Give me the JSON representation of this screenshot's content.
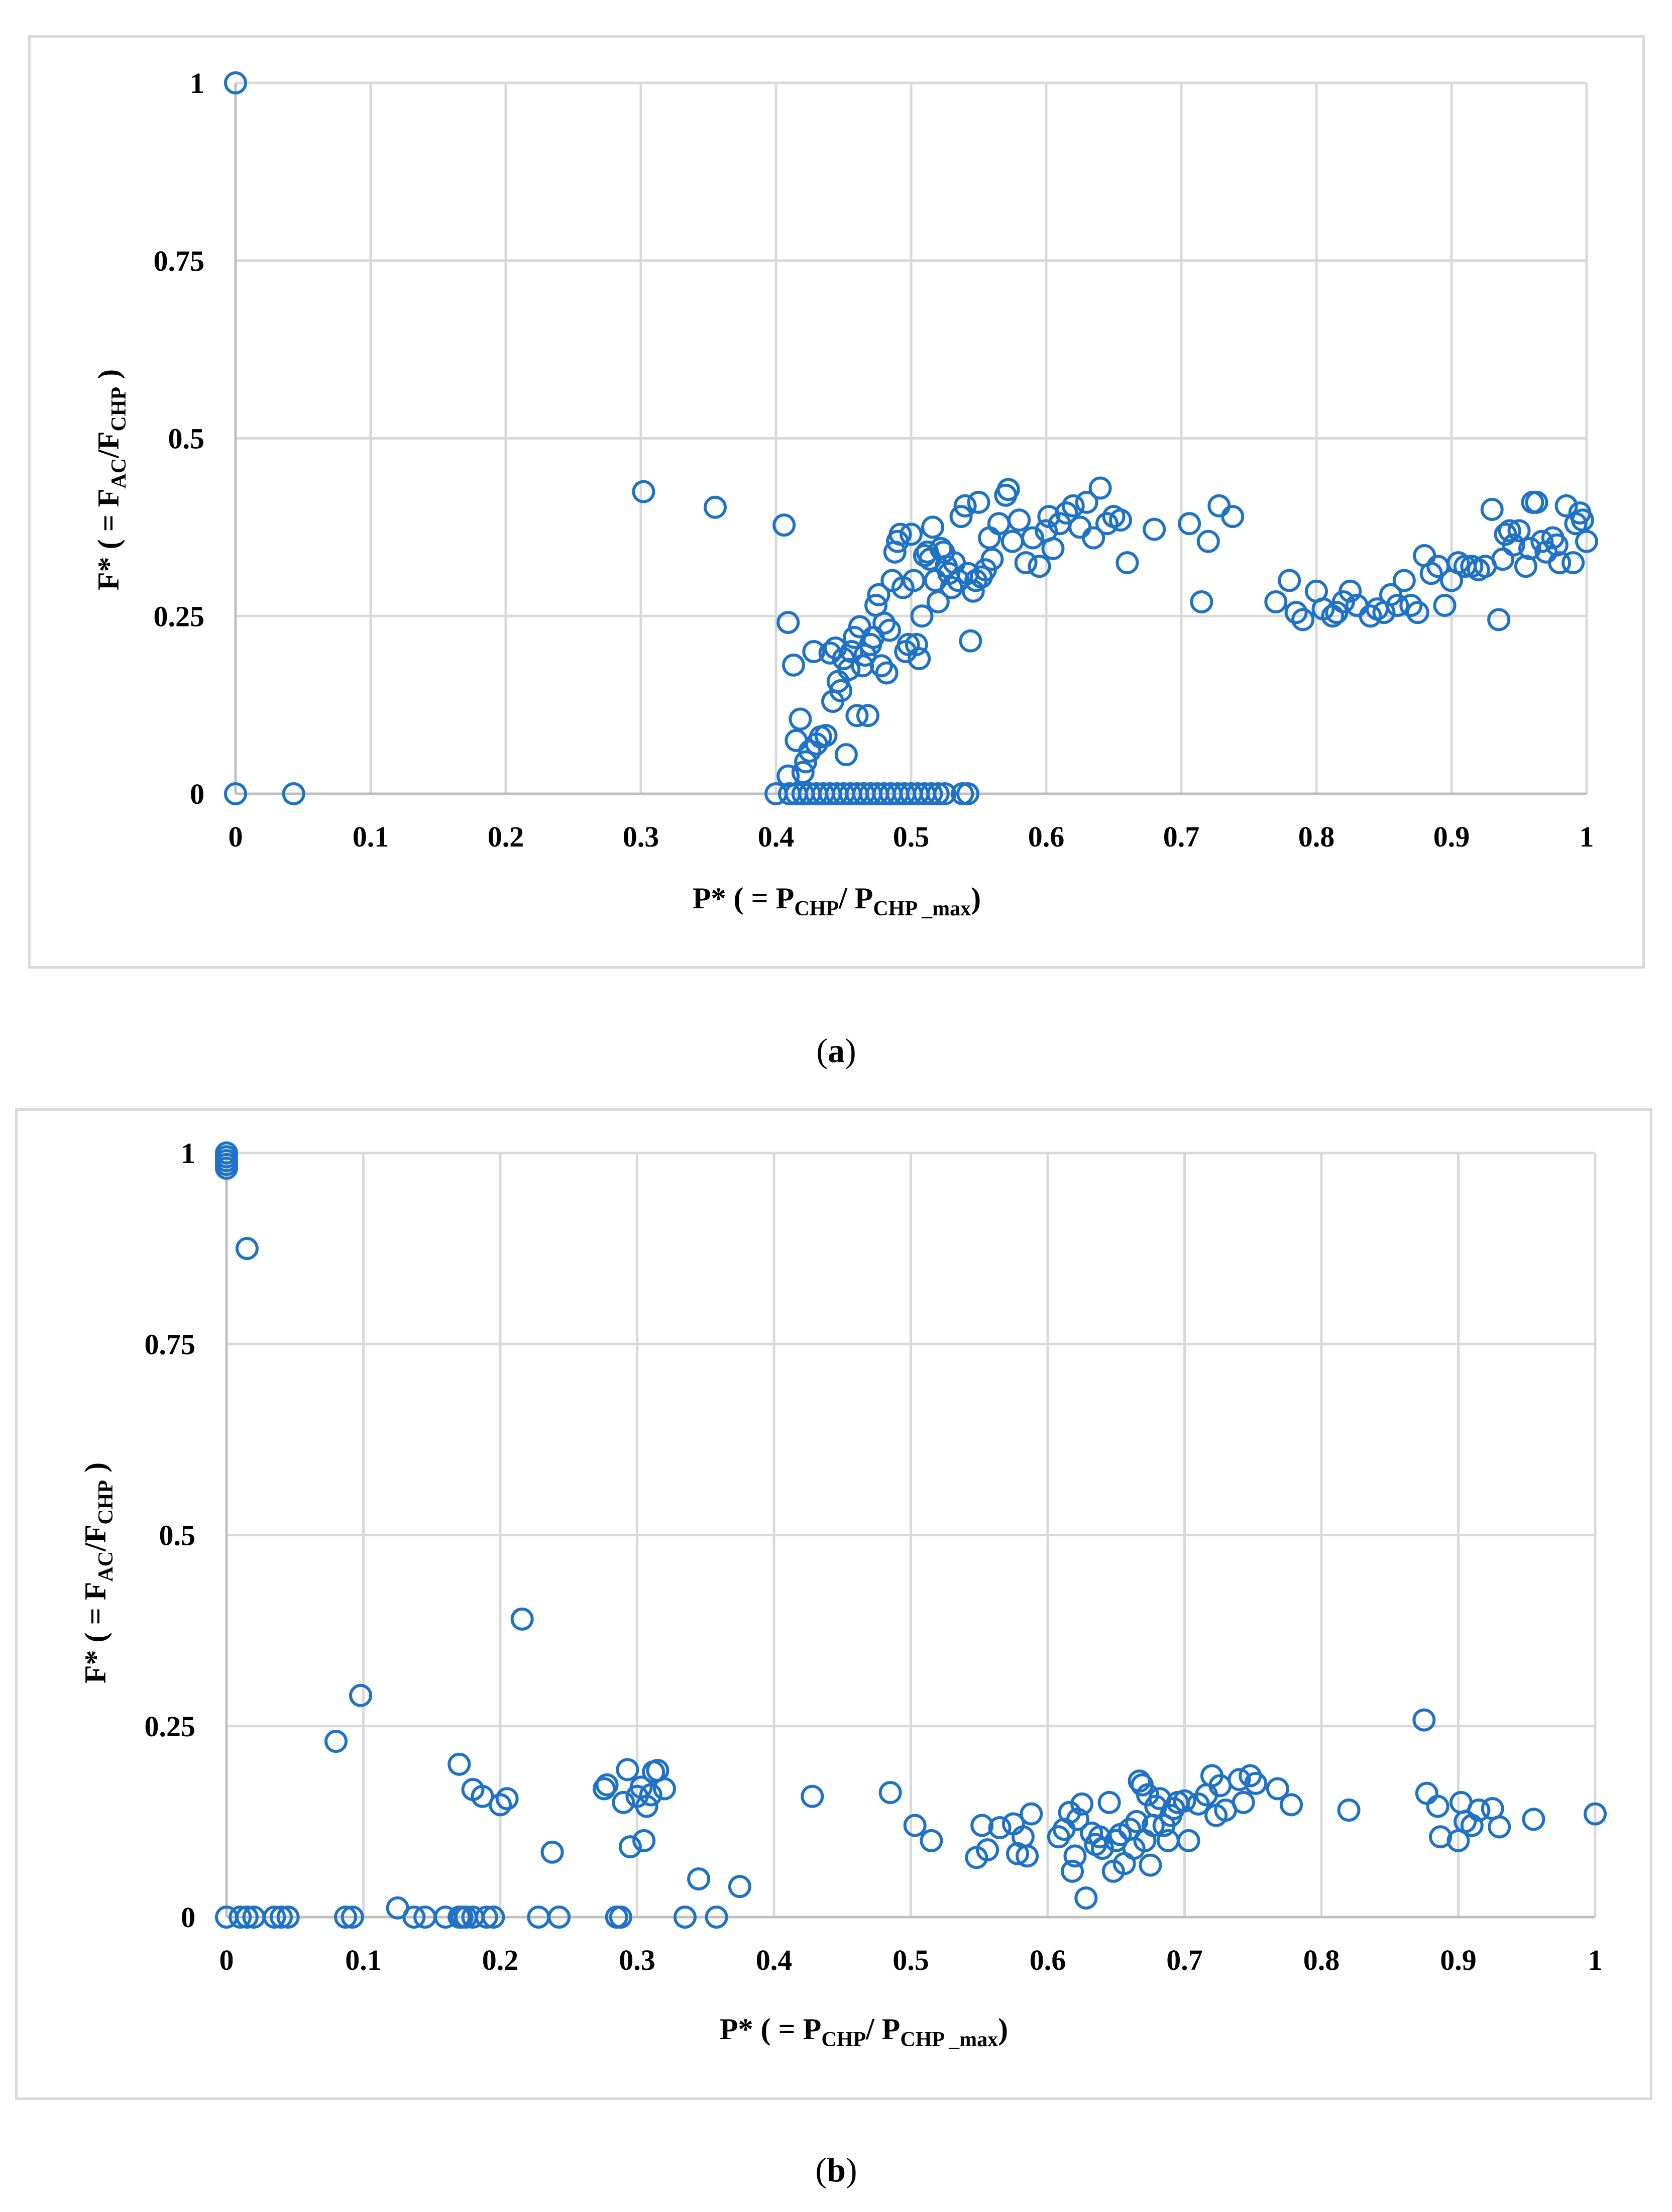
{
  "colors": {
    "marker": "#1f72c4",
    "grid": "#d9d9d9",
    "axis": "#bfbfbf",
    "text": "#000000"
  },
  "chart_data": [
    {
      "type": "scatter",
      "caption_letter": "a",
      "xlabel_main": "P* ( = P",
      "xlabel_sub1": "CHP",
      "xlabel_mid": "/ P",
      "xlabel_sub2": "CHP _max",
      "xlabel_end": ")",
      "ylabel_main": "F* ( = F",
      "ylabel_sub1": "AC",
      "ylabel_mid": "/F",
      "ylabel_sub2": "CHP",
      "ylabel_end": " )",
      "xlim": [
        0,
        1
      ],
      "ylim": [
        0,
        1
      ],
      "xticks": [
        "0",
        "0.1",
        "0.2",
        "0.3",
        "0.4",
        "0.5",
        "0.6",
        "0.7",
        "0.8",
        "0.9",
        "1"
      ],
      "yticks": [
        "0",
        "0.25",
        "0.5",
        "0.75",
        "1"
      ],
      "xtick_values": [
        0,
        0.1,
        0.2,
        0.3,
        0.4,
        0.5,
        0.6,
        0.7,
        0.8,
        0.9,
        1
      ],
      "ytick_values": [
        0,
        0.25,
        0.5,
        0.75,
        1
      ],
      "points": [
        [
          0,
          1
        ],
        [
          0,
          0
        ],
        [
          0.043,
          0
        ],
        [
          0.302,
          0.425
        ],
        [
          0.355,
          0.403
        ],
        [
          0.406,
          0.378
        ],
        [
          0.4,
          0
        ],
        [
          0.41,
          0
        ],
        [
          0.415,
          0
        ],
        [
          0.42,
          0
        ],
        [
          0.425,
          0
        ],
        [
          0.43,
          0
        ],
        [
          0.435,
          0
        ],
        [
          0.44,
          0
        ],
        [
          0.445,
          0
        ],
        [
          0.45,
          0
        ],
        [
          0.455,
          0
        ],
        [
          0.46,
          0
        ],
        [
          0.465,
          0
        ],
        [
          0.47,
          0
        ],
        [
          0.475,
          0
        ],
        [
          0.48,
          0
        ],
        [
          0.485,
          0
        ],
        [
          0.49,
          0
        ],
        [
          0.495,
          0
        ],
        [
          0.5,
          0
        ],
        [
          0.505,
          0
        ],
        [
          0.51,
          0
        ],
        [
          0.515,
          0
        ],
        [
          0.52,
          0
        ],
        [
          0.525,
          0
        ],
        [
          0.538,
          0
        ],
        [
          0.542,
          0
        ],
        [
          0.409,
          0.241
        ],
        [
          0.409,
          0.025
        ],
        [
          0.413,
          0.181
        ],
        [
          0.415,
          0.075
        ],
        [
          0.418,
          0.105
        ],
        [
          0.42,
          0.03
        ],
        [
          0.422,
          0.045
        ],
        [
          0.425,
          0.06
        ],
        [
          0.428,
          0.2
        ],
        [
          0.43,
          0.07
        ],
        [
          0.433,
          0.08
        ],
        [
          0.437,
          0.082
        ],
        [
          0.44,
          0.198
        ],
        [
          0.442,
          0.13
        ],
        [
          0.444,
          0.205
        ],
        [
          0.446,
          0.158
        ],
        [
          0.448,
          0.145
        ],
        [
          0.45,
          0.19
        ],
        [
          0.452,
          0.055
        ],
        [
          0.454,
          0.175
        ],
        [
          0.456,
          0.2
        ],
        [
          0.458,
          0.22
        ],
        [
          0.46,
          0.11
        ],
        [
          0.462,
          0.235
        ],
        [
          0.464,
          0.18
        ],
        [
          0.466,
          0.195
        ],
        [
          0.468,
          0.11
        ],
        [
          0.47,
          0.21
        ],
        [
          0.472,
          0.22
        ],
        [
          0.474,
          0.265
        ],
        [
          0.476,
          0.28
        ],
        [
          0.478,
          0.18
        ],
        [
          0.48,
          0.24
        ],
        [
          0.482,
          0.17
        ],
        [
          0.484,
          0.23
        ],
        [
          0.486,
          0.3
        ],
        [
          0.488,
          0.34
        ],
        [
          0.49,
          0.355
        ],
        [
          0.492,
          0.365
        ],
        [
          0.494,
          0.29
        ],
        [
          0.496,
          0.2
        ],
        [
          0.498,
          0.21
        ],
        [
          0.5,
          0.365
        ],
        [
          0.502,
          0.3
        ],
        [
          0.504,
          0.21
        ],
        [
          0.506,
          0.19
        ],
        [
          0.508,
          0.25
        ],
        [
          0.51,
          0.335
        ],
        [
          0.512,
          0.34
        ],
        [
          0.514,
          0.33
        ],
        [
          0.516,
          0.375
        ],
        [
          0.518,
          0.3
        ],
        [
          0.52,
          0.27
        ],
        [
          0.522,
          0.345
        ],
        [
          0.524,
          0.34
        ],
        [
          0.526,
          0.32
        ],
        [
          0.528,
          0.31
        ],
        [
          0.53,
          0.29
        ],
        [
          0.532,
          0.325
        ],
        [
          0.535,
          0.3
        ],
        [
          0.537,
          0.39
        ],
        [
          0.54,
          0.405
        ],
        [
          0.542,
          0.31
        ],
        [
          0.544,
          0.215
        ],
        [
          0.546,
          0.285
        ],
        [
          0.548,
          0.3
        ],
        [
          0.55,
          0.41
        ],
        [
          0.552,
          0.305
        ],
        [
          0.555,
          0.315
        ],
        [
          0.558,
          0.36
        ],
        [
          0.56,
          0.33
        ],
        [
          0.565,
          0.38
        ],
        [
          0.57,
          0.42
        ],
        [
          0.572,
          0.428
        ],
        [
          0.575,
          0.355
        ],
        [
          0.58,
          0.385
        ],
        [
          0.585,
          0.325
        ],
        [
          0.59,
          0.36
        ],
        [
          0.595,
          0.32
        ],
        [
          0.6,
          0.37
        ],
        [
          0.602,
          0.39
        ],
        [
          0.605,
          0.345
        ],
        [
          0.61,
          0.38
        ],
        [
          0.615,
          0.395
        ],
        [
          0.62,
          0.405
        ],
        [
          0.625,
          0.375
        ],
        [
          0.63,
          0.41
        ],
        [
          0.635,
          0.36
        ],
        [
          0.64,
          0.43
        ],
        [
          0.645,
          0.38
        ],
        [
          0.65,
          0.39
        ],
        [
          0.655,
          0.385
        ],
        [
          0.66,
          0.325
        ],
        [
          0.68,
          0.372
        ],
        [
          0.706,
          0.38
        ],
        [
          0.715,
          0.27
        ],
        [
          0.72,
          0.355
        ],
        [
          0.728,
          0.405
        ],
        [
          0.738,
          0.39
        ],
        [
          0.77,
          0.27
        ],
        [
          0.78,
          0.3
        ],
        [
          0.785,
          0.255
        ],
        [
          0.79,
          0.245
        ],
        [
          0.8,
          0.285
        ],
        [
          0.805,
          0.26
        ],
        [
          0.812,
          0.25
        ],
        [
          0.815,
          0.255
        ],
        [
          0.82,
          0.27
        ],
        [
          0.825,
          0.285
        ],
        [
          0.83,
          0.265
        ],
        [
          0.84,
          0.25
        ],
        [
          0.845,
          0.26
        ],
        [
          0.85,
          0.255
        ],
        [
          0.855,
          0.28
        ],
        [
          0.86,
          0.265
        ],
        [
          0.865,
          0.3
        ],
        [
          0.87,
          0.265
        ],
        [
          0.875,
          0.255
        ],
        [
          0.88,
          0.335
        ],
        [
          0.885,
          0.31
        ],
        [
          0.89,
          0.32
        ],
        [
          0.895,
          0.265
        ],
        [
          0.9,
          0.3
        ],
        [
          0.905,
          0.325
        ],
        [
          0.91,
          0.32
        ],
        [
          0.915,
          0.32
        ],
        [
          0.92,
          0.315
        ],
        [
          0.925,
          0.32
        ],
        [
          0.93,
          0.4
        ],
        [
          0.935,
          0.245
        ],
        [
          0.938,
          0.33
        ],
        [
          0.94,
          0.365
        ],
        [
          0.943,
          0.37
        ],
        [
          0.946,
          0.35
        ],
        [
          0.95,
          0.37
        ],
        [
          0.955,
          0.32
        ],
        [
          0.958,
          0.345
        ],
        [
          0.96,
          0.41
        ],
        [
          0.963,
          0.41
        ],
        [
          0.967,
          0.355
        ],
        [
          0.97,
          0.34
        ],
        [
          0.975,
          0.36
        ],
        [
          0.978,
          0.35
        ],
        [
          0.98,
          0.325
        ],
        [
          0.985,
          0.405
        ],
        [
          0.99,
          0.325
        ],
        [
          0.992,
          0.38
        ],
        [
          0.995,
          0.395
        ],
        [
          0.997,
          0.385
        ],
        [
          1.0,
          0.355
        ]
      ]
    },
    {
      "type": "scatter",
      "caption_letter": "b",
      "xlabel_main": "P* ( = P",
      "xlabel_sub1": "CHP",
      "xlabel_mid": "/ P",
      "xlabel_sub2": "CHP _max",
      "xlabel_end": ")",
      "ylabel_main": "F* ( = F",
      "ylabel_sub1": "AC",
      "ylabel_mid": "/F",
      "ylabel_sub2": "CHP",
      "ylabel_end": " )",
      "xlim": [
        0,
        1
      ],
      "ylim": [
        0,
        1
      ],
      "xticks": [
        "0",
        "0.1",
        "0.2",
        "0.3",
        "0.4",
        "0.5",
        "0.6",
        "0.7",
        "0.8",
        "0.9",
        "1"
      ],
      "yticks": [
        "0",
        "0.25",
        "0.5",
        "0.75",
        "1"
      ],
      "xtick_values": [
        0,
        0.1,
        0.2,
        0.3,
        0.4,
        0.5,
        0.6,
        0.7,
        0.8,
        0.9,
        1
      ],
      "ytick_values": [
        0,
        0.25,
        0.5,
        0.75,
        1
      ],
      "points": [
        [
          0,
          1
        ],
        [
          0,
          0.995
        ],
        [
          0,
          0.99
        ],
        [
          0,
          0.985
        ],
        [
          0,
          0.98
        ],
        [
          0.015,
          0.875
        ],
        [
          0,
          0
        ],
        [
          0.01,
          0
        ],
        [
          0.015,
          0
        ],
        [
          0.02,
          0
        ],
        [
          0.035,
          0
        ],
        [
          0.04,
          0
        ],
        [
          0.045,
          0
        ],
        [
          0.087,
          0
        ],
        [
          0.092,
          0
        ],
        [
          0.125,
          0.012
        ],
        [
          0.137,
          0
        ],
        [
          0.145,
          0
        ],
        [
          0.16,
          0
        ],
        [
          0.17,
          0
        ],
        [
          0.172,
          0
        ],
        [
          0.175,
          0
        ],
        [
          0.18,
          0
        ],
        [
          0.19,
          0
        ],
        [
          0.195,
          0
        ],
        [
          0.228,
          0
        ],
        [
          0.243,
          0
        ],
        [
          0.285,
          0
        ],
        [
          0.288,
          0
        ],
        [
          0.335,
          0
        ],
        [
          0.358,
          0
        ],
        [
          0.08,
          0.23
        ],
        [
          0.098,
          0.29
        ],
        [
          0.17,
          0.2
        ],
        [
          0.18,
          0.167
        ],
        [
          0.187,
          0.158
        ],
        [
          0.2,
          0.147
        ],
        [
          0.205,
          0.155
        ],
        [
          0.216,
          0.39
        ],
        [
          0.238,
          0.085
        ],
        [
          0.276,
          0.168
        ],
        [
          0.278,
          0.173
        ],
        [
          0.29,
          0.15
        ],
        [
          0.293,
          0.193
        ],
        [
          0.295,
          0.092
        ],
        [
          0.3,
          0.158
        ],
        [
          0.303,
          0.17
        ],
        [
          0.305,
          0.1
        ],
        [
          0.307,
          0.145
        ],
        [
          0.31,
          0.16
        ],
        [
          0.312,
          0.19
        ],
        [
          0.315,
          0.192
        ],
        [
          0.32,
          0.168
        ],
        [
          0.345,
          0.05
        ],
        [
          0.375,
          0.04
        ],
        [
          0.428,
          0.158
        ],
        [
          0.485,
          0.163
        ],
        [
          0.503,
          0.12
        ],
        [
          0.515,
          0.1
        ],
        [
          0.548,
          0.078
        ],
        [
          0.552,
          0.12
        ],
        [
          0.556,
          0.088
        ],
        [
          0.565,
          0.117
        ],
        [
          0.575,
          0.122
        ],
        [
          0.578,
          0.083
        ],
        [
          0.582,
          0.105
        ],
        [
          0.585,
          0.08
        ],
        [
          0.588,
          0.135
        ],
        [
          0.608,
          0.105
        ],
        [
          0.612,
          0.115
        ],
        [
          0.616,
          0.137
        ],
        [
          0.618,
          0.06
        ],
        [
          0.62,
          0.08
        ],
        [
          0.622,
          0.128
        ],
        [
          0.625,
          0.148
        ],
        [
          0.628,
          0.025
        ],
        [
          0.632,
          0.11
        ],
        [
          0.635,
          0.095
        ],
        [
          0.638,
          0.105
        ],
        [
          0.64,
          0.09
        ],
        [
          0.645,
          0.15
        ],
        [
          0.648,
          0.06
        ],
        [
          0.65,
          0.1
        ],
        [
          0.653,
          0.108
        ],
        [
          0.656,
          0.07
        ],
        [
          0.66,
          0.115
        ],
        [
          0.663,
          0.09
        ],
        [
          0.665,
          0.125
        ],
        [
          0.667,
          0.178
        ],
        [
          0.669,
          0.173
        ],
        [
          0.671,
          0.1
        ],
        [
          0.673,
          0.16
        ],
        [
          0.675,
          0.068
        ],
        [
          0.677,
          0.12
        ],
        [
          0.679,
          0.145
        ],
        [
          0.682,
          0.155
        ],
        [
          0.685,
          0.12
        ],
        [
          0.688,
          0.1
        ],
        [
          0.69,
          0.133
        ],
        [
          0.692,
          0.142
        ],
        [
          0.695,
          0.15
        ],
        [
          0.7,
          0.152
        ],
        [
          0.703,
          0.1
        ],
        [
          0.71,
          0.148
        ],
        [
          0.716,
          0.16
        ],
        [
          0.72,
          0.185
        ],
        [
          0.723,
          0.133
        ],
        [
          0.726,
          0.172
        ],
        [
          0.73,
          0.14
        ],
        [
          0.74,
          0.18
        ],
        [
          0.743,
          0.15
        ],
        [
          0.748,
          0.185
        ],
        [
          0.752,
          0.175
        ],
        [
          0.768,
          0.168
        ],
        [
          0.778,
          0.147
        ],
        [
          0.82,
          0.14
        ],
        [
          0.875,
          0.258
        ],
        [
          0.877,
          0.162
        ],
        [
          0.885,
          0.145
        ],
        [
          0.887,
          0.105
        ],
        [
          0.9,
          0.1
        ],
        [
          0.902,
          0.15
        ],
        [
          0.905,
          0.125
        ],
        [
          0.91,
          0.12
        ],
        [
          0.915,
          0.14
        ],
        [
          0.925,
          0.142
        ],
        [
          0.93,
          0.118
        ],
        [
          0.955,
          0.128
        ],
        [
          1.0,
          0.135
        ]
      ]
    }
  ]
}
